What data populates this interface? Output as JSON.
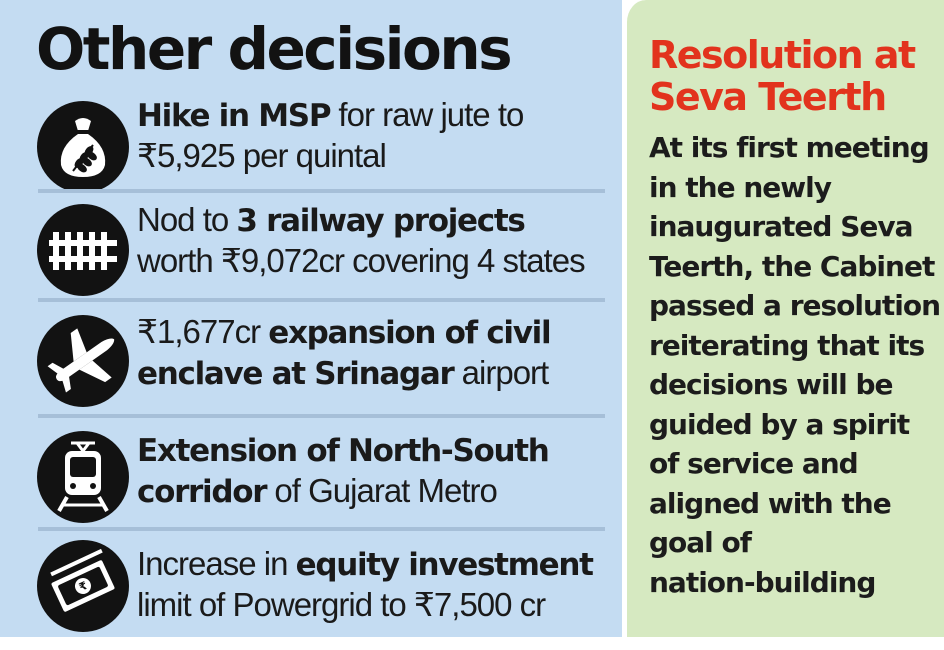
{
  "left": {
    "title": "Other decisions",
    "items": [
      {
        "icon": "grain-sack-icon",
        "parts": [
          {
            "b": true,
            "t": "Hike in MSP"
          },
          {
            "b": false,
            "t": " for raw jute to"
          }
        ],
        "line2": [
          {
            "b": false,
            "t": "₹5,925 per quintal"
          }
        ]
      },
      {
        "icon": "railway-track-icon",
        "parts": [
          {
            "b": false,
            "t": "Nod to "
          },
          {
            "b": true,
            "t": "3 railway projects"
          }
        ],
        "line2": [
          {
            "b": false,
            "t": "worth ₹9,072cr covering 4 states"
          }
        ]
      },
      {
        "icon": "airplane-icon",
        "parts": [
          {
            "b": false,
            "t": "₹1,677cr "
          },
          {
            "b": true,
            "t": "expansion of civil"
          }
        ],
        "line2": [
          {
            "b": true,
            "t": "enclave at Srinagar"
          },
          {
            "b": false,
            "t": " airport"
          }
        ]
      },
      {
        "icon": "metro-train-icon",
        "parts": [
          {
            "b": true,
            "t": "Extension of North-South"
          }
        ],
        "line2": [
          {
            "b": true,
            "t": "corridor"
          },
          {
            "b": false,
            "t": " of Gujarat Metro"
          }
        ]
      },
      {
        "icon": "rupee-notes-icon",
        "parts": [
          {
            "b": false,
            "t": "Increase in "
          },
          {
            "b": true,
            "t": "equity investment"
          }
        ],
        "line2": [
          {
            "b": false,
            "t": "limit of Powergrid to ₹7,500 cr"
          }
        ]
      }
    ]
  },
  "right": {
    "heading_line1": "Resolution at",
    "heading_line2": "Seva Teerth",
    "body_lines": [
      "At its first meeting",
      "in the newly",
      "inaugurated Seva",
      "Teerth, the Cabinet",
      "passed a resolution",
      "reiterating that its",
      "decisions will be",
      "guided by a spirit",
      "of service and",
      "aligned with the",
      "goal of",
      "nation-building"
    ]
  },
  "colors": {
    "left_bg": "#c4dcf2",
    "right_bg": "#d6e9c1",
    "heading_red": "#e2331d",
    "icon_circle": "#121212"
  }
}
